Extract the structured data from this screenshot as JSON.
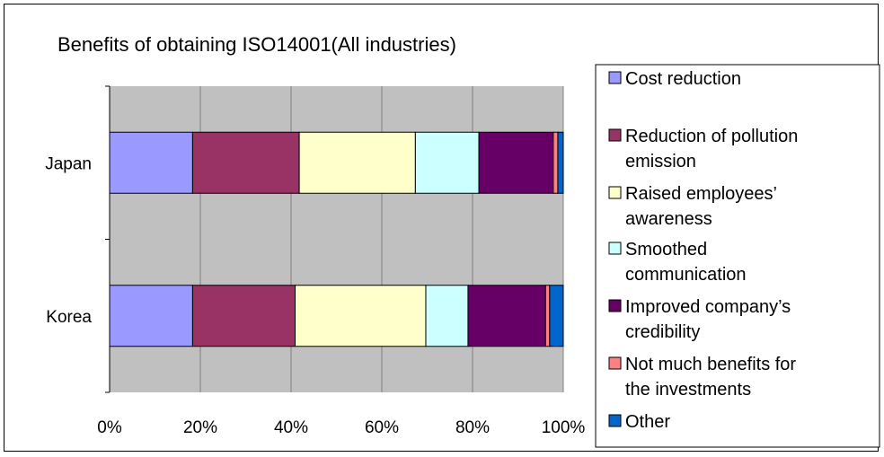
{
  "chart_data": {
    "type": "bar",
    "orientation": "horizontal",
    "stacked": "percent",
    "title": "Benefits of obtaining ISO14001(All industries)",
    "categories": [
      "Japan",
      "Korea"
    ],
    "xlim": [
      0,
      100
    ],
    "xticks": [
      "0%",
      "20%",
      "40%",
      "60%",
      "80%",
      "100%"
    ],
    "grid": true,
    "legend_position": "right",
    "series": [
      {
        "name": "Cost reduction",
        "color": "#9999FF",
        "values": [
          18.3,
          18.3
        ]
      },
      {
        "name": "Reduction of pollution emission",
        "color": "#993366",
        "values": [
          23.5,
          22.6
        ]
      },
      {
        "name": "Raised employees’ awareness",
        "color": "#FFFFCC",
        "values": [
          25.6,
          28.8
        ]
      },
      {
        "name": "Smoothed communication",
        "color": "#CCFFFF",
        "values": [
          14.0,
          9.3
        ]
      },
      {
        "name": "Improved company’s credibility",
        "color": "#660066",
        "values": [
          16.4,
          17.1
        ]
      },
      {
        "name": "Not much benefits for the investments",
        "color": "#FF8080",
        "values": [
          1.0,
          0.9
        ]
      },
      {
        "name": "Other",
        "color": "#0066CC",
        "values": [
          1.2,
          3.0
        ]
      }
    ]
  },
  "colors": {
    "plot_background": "#C0C0C0",
    "gridline": "#808080"
  }
}
